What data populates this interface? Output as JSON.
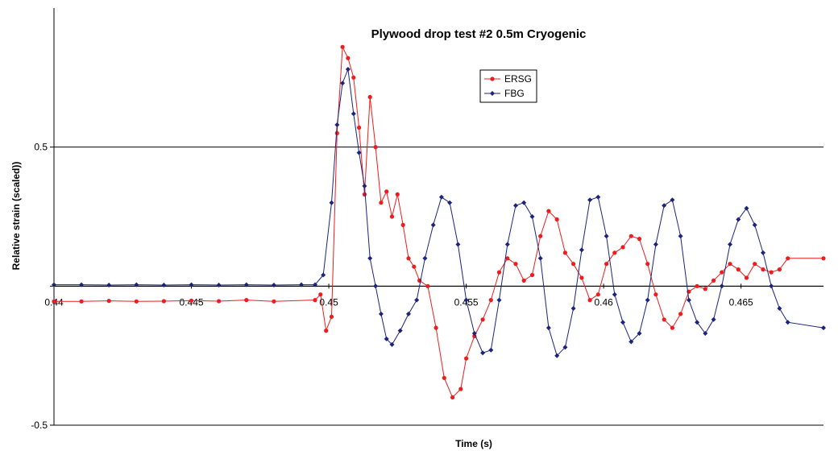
{
  "chart_data": {
    "type": "line",
    "title": "Plywood drop test #2 0.5m Cryogenic",
    "xlabel": "Time (s)",
    "ylabel": "Relative strain (scaled))",
    "xlim": [
      0.44,
      0.468
    ],
    "ylim": [
      -0.5,
      1.0
    ],
    "x_ticks": [
      0.44,
      0.445,
      0.45,
      0.455,
      0.46,
      0.465
    ],
    "x_tick_labels": [
      "0.44",
      "0.445",
      "0.45",
      "0.455",
      "0.46",
      "0.465"
    ],
    "y_ticks": [
      -0.5,
      0,
      0.5
    ],
    "y_tick_labels": [
      "-0.5",
      "",
      "0.5"
    ],
    "grid": "horizontal major lines",
    "legend_position": "top-center",
    "series": [
      {
        "name": "ERSG",
        "color": "#ee1c1c",
        "marker": "circle",
        "x": [
          0.44,
          0.441,
          0.442,
          0.443,
          0.444,
          0.445,
          0.446,
          0.447,
          0.448,
          0.4495,
          0.4497,
          0.4499,
          0.4501,
          0.4503,
          0.4505,
          0.4507,
          0.4509,
          0.4511,
          0.4513,
          0.4515,
          0.4517,
          0.4519,
          0.4521,
          0.4523,
          0.4525,
          0.4527,
          0.4529,
          0.4531,
          0.4533,
          0.4536,
          0.4539,
          0.4542,
          0.4545,
          0.4548,
          0.455,
          0.4553,
          0.4556,
          0.4559,
          0.4562,
          0.4565,
          0.4568,
          0.4571,
          0.4574,
          0.4577,
          0.458,
          0.4583,
          0.4586,
          0.4589,
          0.4592,
          0.4595,
          0.4598,
          0.4601,
          0.4604,
          0.4607,
          0.461,
          0.4613,
          0.4616,
          0.4619,
          0.4622,
          0.4625,
          0.4628,
          0.4631,
          0.4634,
          0.4637,
          0.464,
          0.4643,
          0.4646,
          0.4649,
          0.4652,
          0.4655,
          0.4658,
          0.4661,
          0.4664,
          0.4667,
          0.468
        ],
        "values": [
          -0.055,
          -0.055,
          -0.053,
          -0.055,
          -0.054,
          -0.052,
          -0.054,
          -0.05,
          -0.055,
          -0.05,
          -0.03,
          -0.16,
          -0.11,
          0.55,
          0.86,
          0.82,
          0.75,
          0.57,
          0.33,
          0.68,
          0.5,
          0.3,
          0.34,
          0.25,
          0.33,
          0.22,
          0.1,
          0.07,
          0.02,
          0.0,
          -0.15,
          -0.33,
          -0.4,
          -0.37,
          -0.26,
          -0.18,
          -0.12,
          -0.05,
          0.05,
          0.1,
          0.08,
          0.02,
          0.04,
          0.18,
          0.27,
          0.24,
          0.12,
          0.08,
          0.03,
          -0.05,
          -0.03,
          0.08,
          0.12,
          0.14,
          0.18,
          0.17,
          0.08,
          -0.03,
          -0.12,
          -0.15,
          -0.1,
          -0.02,
          0.0,
          -0.01,
          0.02,
          0.05,
          0.08,
          0.06,
          0.03,
          0.08,
          0.06,
          0.05,
          0.06,
          0.1,
          0.1
        ]
      },
      {
        "name": "FBG",
        "color": "#1a237e",
        "marker": "diamond",
        "x": [
          0.44,
          0.441,
          0.442,
          0.443,
          0.444,
          0.445,
          0.446,
          0.447,
          0.448,
          0.449,
          0.4495,
          0.4498,
          0.4501,
          0.4503,
          0.4505,
          0.4507,
          0.4509,
          0.4511,
          0.4513,
          0.4515,
          0.4517,
          0.4519,
          0.4521,
          0.4523,
          0.4526,
          0.4529,
          0.4532,
          0.4535,
          0.4538,
          0.4541,
          0.4544,
          0.4547,
          0.455,
          0.4553,
          0.4556,
          0.4559,
          0.4562,
          0.4565,
          0.4568,
          0.4571,
          0.4574,
          0.4577,
          0.458,
          0.4583,
          0.4586,
          0.4589,
          0.4592,
          0.4595,
          0.4598,
          0.4601,
          0.4604,
          0.4607,
          0.461,
          0.4613,
          0.4616,
          0.4619,
          0.4622,
          0.4625,
          0.4628,
          0.4631,
          0.4634,
          0.4637,
          0.464,
          0.4643,
          0.4646,
          0.4649,
          0.4652,
          0.4655,
          0.4658,
          0.4661,
          0.4664,
          0.4667,
          0.468
        ],
        "values": [
          0.005,
          0.005,
          0.004,
          0.005,
          0.004,
          0.005,
          0.004,
          0.005,
          0.004,
          0.005,
          0.005,
          0.04,
          0.3,
          0.58,
          0.73,
          0.78,
          0.62,
          0.48,
          0.36,
          0.1,
          0.0,
          -0.1,
          -0.19,
          -0.21,
          -0.16,
          -0.1,
          -0.05,
          0.1,
          0.22,
          0.32,
          0.3,
          0.15,
          -0.05,
          -0.17,
          -0.24,
          -0.23,
          -0.05,
          0.15,
          0.29,
          0.3,
          0.25,
          0.1,
          -0.15,
          -0.25,
          -0.22,
          -0.08,
          0.13,
          0.31,
          0.32,
          0.18,
          -0.03,
          -0.13,
          -0.2,
          -0.17,
          -0.05,
          0.15,
          0.29,
          0.31,
          0.18,
          -0.05,
          -0.13,
          -0.17,
          -0.12,
          0.0,
          0.15,
          0.24,
          0.28,
          0.22,
          0.12,
          0.0,
          -0.08,
          -0.13,
          -0.15
        ]
      }
    ]
  }
}
